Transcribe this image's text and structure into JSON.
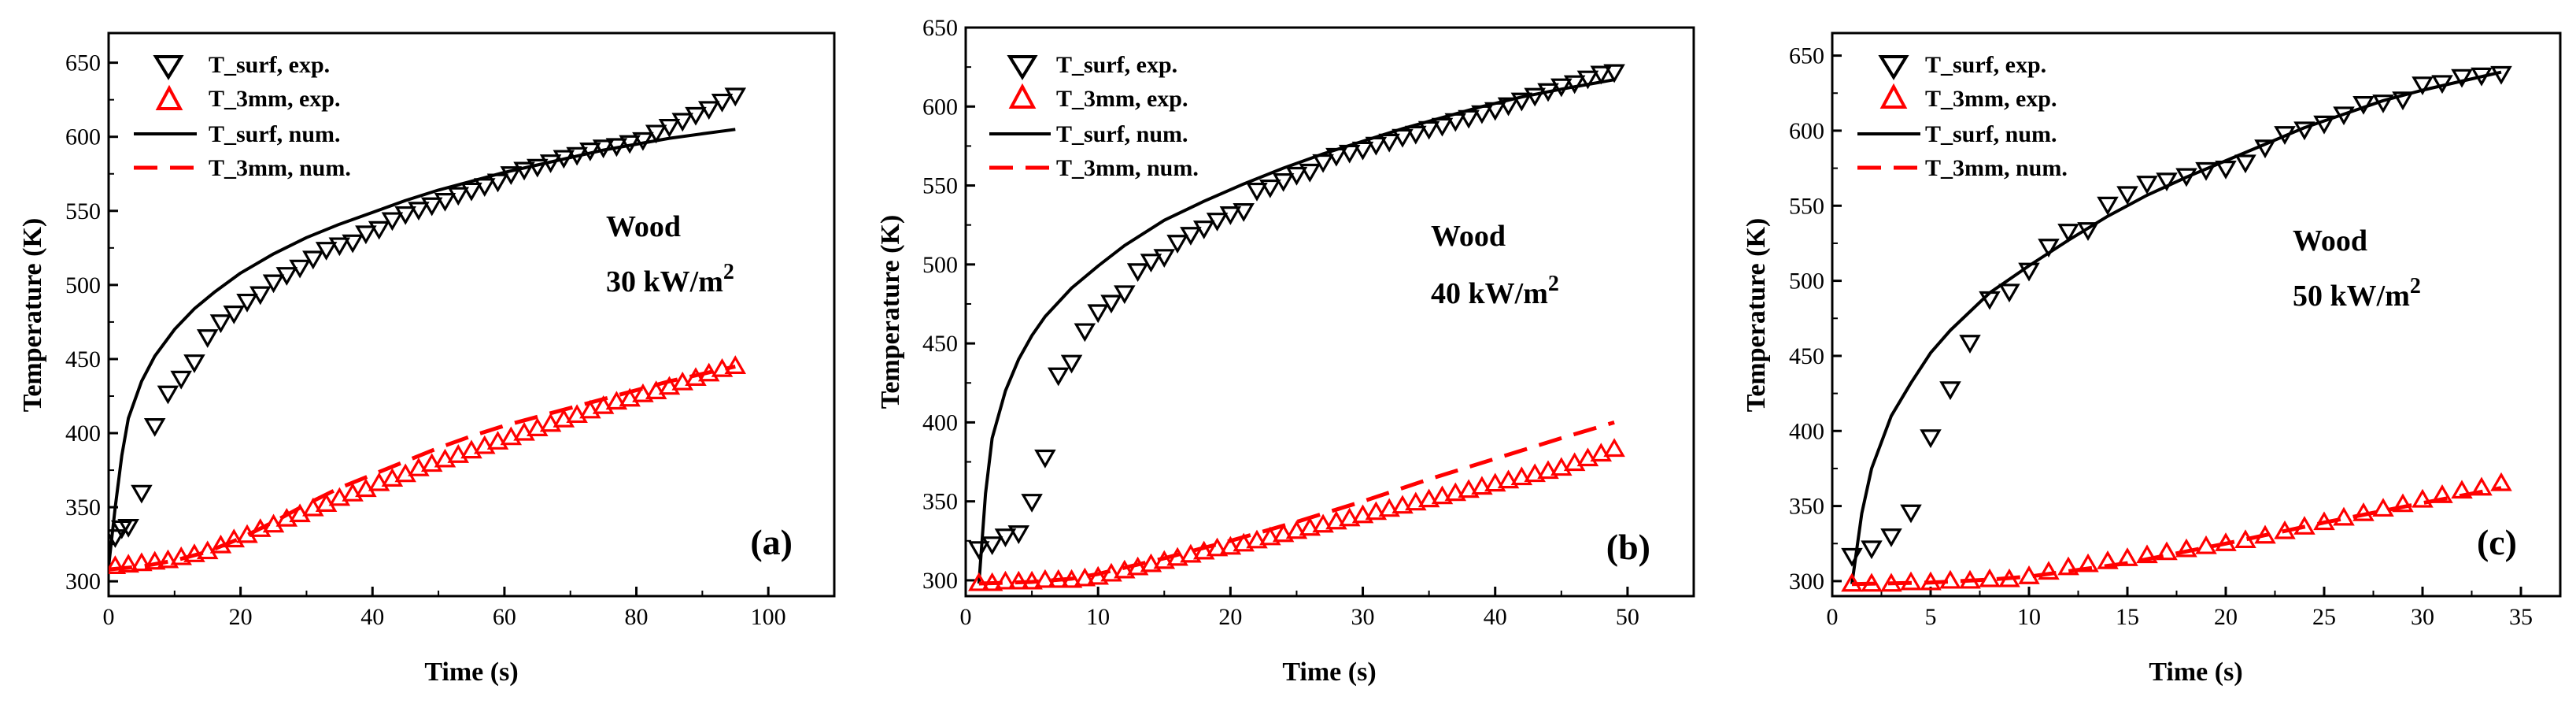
{
  "colors": {
    "exp_surf": "#000000",
    "exp_3mm": "#ff0000",
    "num_surf": "#000000",
    "num_3mm": "#ff0000"
  },
  "legend": {
    "surf_exp": "T_surf, exp.",
    "mm_exp": "T_3mm, exp.",
    "surf_num": "T_surf, num.",
    "mm_num": "T_3mm, num."
  },
  "chart_data": [
    {
      "type": "scatter",
      "panel_label": "(a)",
      "material": "Wood",
      "heat_flux": "30 kW/m",
      "heat_flux_sup": "2",
      "xlabel": "Time (s)",
      "ylabel": "Temperature (K)",
      "xlim": [
        0,
        110
      ],
      "ylim": [
        290,
        670
      ],
      "xticks": [
        0,
        20,
        40,
        60,
        80,
        100
      ],
      "yticks": [
        300,
        350,
        400,
        450,
        500,
        550,
        600,
        650
      ],
      "series": [
        {
          "name": "T_surf, exp.",
          "x": [
            1,
            2,
            3,
            5,
            7,
            9,
            11,
            13,
            15,
            17,
            19,
            21,
            23,
            25,
            27,
            29,
            31,
            33,
            35,
            37,
            39,
            41,
            43,
            45,
            47,
            49,
            51,
            53,
            55,
            57,
            59,
            61,
            63,
            65,
            67,
            69,
            71,
            73,
            75,
            77,
            79,
            81,
            83,
            85,
            87,
            89,
            91,
            93,
            95
          ],
          "y": [
            330,
            336,
            337,
            360,
            405,
            427,
            437,
            448,
            465,
            475,
            481,
            489,
            494,
            502,
            507,
            512,
            518,
            524,
            527,
            529,
            535,
            538,
            544,
            548,
            551,
            554,
            557,
            561,
            564,
            567,
            570,
            575,
            578,
            580,
            583,
            586,
            588,
            591,
            593,
            594,
            596,
            598,
            603,
            607,
            611,
            615,
            619,
            624,
            628
          ]
        },
        {
          "name": "T_3mm, exp.",
          "x": [
            1,
            3,
            5,
            7,
            9,
            11,
            13,
            15,
            17,
            19,
            21,
            23,
            25,
            27,
            29,
            31,
            33,
            35,
            37,
            39,
            41,
            43,
            45,
            47,
            49,
            51,
            53,
            55,
            57,
            59,
            61,
            63,
            65,
            67,
            69,
            71,
            73,
            75,
            77,
            79,
            81,
            83,
            85,
            87,
            89,
            91,
            93,
            95
          ],
          "y": [
            310,
            311,
            312,
            313,
            314,
            316,
            318,
            320,
            324,
            328,
            331,
            335,
            338,
            342,
            345,
            349,
            352,
            356,
            359,
            362,
            366,
            369,
            372,
            376,
            379,
            382,
            385,
            388,
            391,
            394,
            397,
            400,
            403,
            406,
            409,
            412,
            415,
            418,
            421,
            423,
            426,
            428,
            431,
            434,
            437,
            440,
            443,
            445
          ]
        },
        {
          "name": "T_surf, num.",
          "x": [
            0,
            1,
            2,
            3,
            5,
            7,
            10,
            13,
            16,
            20,
            25,
            30,
            35,
            40,
            45,
            50,
            55,
            60,
            65,
            70,
            75,
            80,
            85,
            90,
            95
          ],
          "y": [
            310,
            350,
            385,
            410,
            435,
            452,
            470,
            484,
            495,
            508,
            521,
            532,
            541,
            549,
            557,
            564,
            570,
            576,
            581,
            586,
            591,
            595,
            599,
            602,
            605
          ]
        },
        {
          "name": "T_3mm, num.",
          "x": [
            0,
            5,
            10,
            15,
            20,
            25,
            30,
            35,
            40,
            45,
            50,
            55,
            60,
            65,
            70,
            75,
            80,
            85,
            90,
            95
          ],
          "y": [
            308,
            310,
            314,
            320,
            329,
            340,
            352,
            363,
            372,
            381,
            390,
            398,
            405,
            411,
            417,
            423,
            429,
            435,
            440,
            445
          ]
        }
      ]
    },
    {
      "type": "scatter",
      "panel_label": "(b)",
      "material": "Wood",
      "heat_flux": "40 kW/m",
      "heat_flux_sup": "2",
      "xlabel": "Time (s)",
      "ylabel": "Temperature (K)",
      "xlim": [
        0,
        55
      ],
      "ylim": [
        290,
        650
      ],
      "xticks": [
        0,
        10,
        20,
        30,
        40,
        50
      ],
      "yticks": [
        300,
        350,
        400,
        450,
        500,
        550,
        600,
        650
      ],
      "series": [
        {
          "name": "T_surf, exp.",
          "x": [
            1,
            2,
            3,
            4,
            5,
            6,
            7,
            8,
            9,
            10,
            11,
            12,
            13,
            14,
            15,
            16,
            17,
            18,
            19,
            20,
            21,
            22,
            23,
            24,
            25,
            26,
            27,
            28,
            29,
            30,
            31,
            32,
            33,
            34,
            35,
            36,
            37,
            38,
            39,
            40,
            41,
            42,
            43,
            44,
            45,
            46,
            47,
            48,
            49
          ],
          "y": [
            320,
            323,
            328,
            330,
            350,
            378,
            430,
            438,
            458,
            470,
            476,
            482,
            496,
            502,
            505,
            514,
            519,
            523,
            528,
            532,
            534,
            547,
            549,
            553,
            557,
            559,
            565,
            569,
            571,
            573,
            576,
            578,
            581,
            583,
            586,
            588,
            591,
            593,
            596,
            598,
            601,
            604,
            607,
            610,
            613,
            615,
            618,
            621,
            622
          ]
        },
        {
          "name": "T_3mm, exp.",
          "x": [
            1,
            2,
            3,
            4,
            5,
            6,
            7,
            8,
            9,
            10,
            11,
            12,
            13,
            14,
            15,
            16,
            17,
            18,
            19,
            20,
            21,
            22,
            23,
            24,
            25,
            26,
            27,
            28,
            29,
            30,
            31,
            32,
            33,
            34,
            35,
            36,
            37,
            38,
            39,
            40,
            41,
            42,
            43,
            44,
            45,
            46,
            47,
            48,
            49
          ],
          "y": [
            298,
            298,
            299,
            299,
            299,
            300,
            300,
            300,
            301,
            302,
            304,
            306,
            308,
            310,
            312,
            314,
            316,
            318,
            320,
            321,
            323,
            325,
            327,
            329,
            331,
            333,
            335,
            337,
            339,
            341,
            343,
            345,
            347,
            349,
            351,
            353,
            355,
            357,
            359,
            361,
            363,
            365,
            367,
            369,
            371,
            374,
            377,
            380,
            383
          ]
        },
        {
          "name": "T_surf, num.",
          "x": [
            1,
            1.5,
            2,
            3,
            4,
            5,
            6,
            8,
            10,
            12,
            15,
            18,
            21,
            24,
            27,
            30,
            33,
            36,
            39,
            42,
            45,
            49
          ],
          "y": [
            298,
            355,
            390,
            420,
            440,
            455,
            467,
            485,
            499,
            512,
            528,
            540,
            551,
            561,
            570,
            578,
            586,
            593,
            600,
            606,
            611,
            617
          ]
        },
        {
          "name": "T_3mm, num.",
          "x": [
            1,
            5,
            8,
            10,
            15,
            20,
            25,
            30,
            35,
            40,
            45,
            49
          ],
          "y": [
            298,
            299,
            301,
            304,
            314,
            325,
            337,
            350,
            364,
            377,
            390,
            400
          ]
        }
      ]
    },
    {
      "type": "scatter",
      "panel_label": "(c)",
      "material": "Wood",
      "heat_flux": "50 kW/m",
      "heat_flux_sup": "2",
      "xlabel": "Time (s)",
      "ylabel": "Temperature (K)",
      "xlim": [
        0,
        37
      ],
      "ylim": [
        290,
        665
      ],
      "xticks": [
        0,
        5,
        10,
        15,
        20,
        25,
        30,
        35
      ],
      "yticks": [
        300,
        350,
        400,
        450,
        500,
        550,
        600,
        650
      ],
      "series": [
        {
          "name": "T_surf, exp.",
          "x": [
            1,
            2,
            3,
            4,
            5,
            6,
            7,
            8,
            9,
            10,
            11,
            12,
            13,
            14,
            15,
            16,
            17,
            18,
            19,
            20,
            21,
            22,
            23,
            24,
            25,
            26,
            27,
            28,
            29,
            30,
            31,
            32,
            33,
            34
          ],
          "y": [
            317,
            322,
            330,
            346,
            396,
            428,
            459,
            488,
            493,
            507,
            523,
            533,
            534,
            551,
            558,
            565,
            567,
            570,
            574,
            575,
            579,
            589,
            598,
            601,
            605,
            611,
            618,
            619,
            621,
            631,
            632,
            636,
            637,
            638
          ]
        },
        {
          "name": "T_3mm, exp.",
          "x": [
            1,
            2,
            3,
            4,
            5,
            6,
            7,
            8,
            9,
            10,
            11,
            12,
            13,
            14,
            15,
            16,
            17,
            18,
            19,
            20,
            21,
            22,
            23,
            24,
            25,
            26,
            27,
            28,
            29,
            30,
            31,
            32,
            33,
            34
          ],
          "y": [
            298,
            298,
            298,
            299,
            299,
            300,
            300,
            301,
            301,
            303,
            306,
            309,
            311,
            313,
            315,
            317,
            319,
            321,
            323,
            325,
            327,
            330,
            333,
            336,
            339,
            342,
            345,
            348,
            351,
            354,
            357,
            360,
            362,
            365
          ]
        },
        {
          "name": "T_surf, num.",
          "x": [
            1,
            1.5,
            2,
            3,
            4,
            5,
            6,
            8,
            10,
            12,
            14,
            16,
            18,
            20,
            22,
            24,
            26,
            28,
            30,
            32,
            34
          ],
          "y": [
            298,
            345,
            375,
            410,
            432,
            452,
            467,
            492,
            510,
            527,
            543,
            557,
            569,
            580,
            591,
            602,
            611,
            620,
            627,
            633,
            639
          ]
        },
        {
          "name": "T_3mm, num.",
          "x": [
            1,
            5,
            8,
            10,
            15,
            20,
            25,
            30,
            34
          ],
          "y": [
            298,
            299,
            301,
            303,
            312,
            325,
            339,
            352,
            362
          ]
        }
      ]
    }
  ]
}
